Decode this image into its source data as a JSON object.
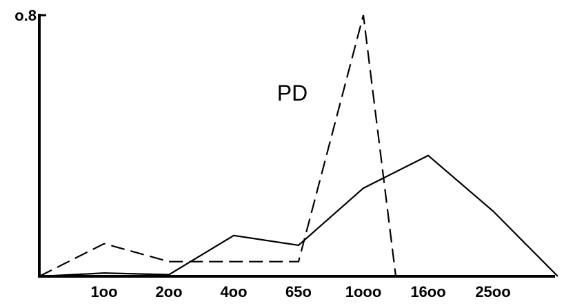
{
  "chart_data": {
    "type": "line",
    "title": "",
    "xlabel": "",
    "ylabel": "",
    "ylim": [
      0,
      0.8
    ],
    "y_ticks": [
      {
        "value": 0.8,
        "label": "o.8"
      }
    ],
    "categories": [
      "",
      "1oo",
      "2oo",
      "4oo",
      "65o",
      "1ooo",
      "16oo",
      "25oo",
      ""
    ],
    "annotations": [
      {
        "text": "PD"
      }
    ],
    "series": [
      {
        "style": "dashed",
        "x": [
          0,
          1,
          2,
          3,
          4,
          5,
          5.5
        ],
        "y": [
          0,
          0.1,
          0.045,
          0.045,
          0.045,
          0.8,
          0
        ]
      },
      {
        "style": "solid",
        "x": [
          0,
          1,
          2,
          3,
          4,
          5,
          6,
          7,
          8
        ],
        "y": [
          0,
          0.01,
          0.005,
          0.125,
          0.095,
          0.27,
          0.37,
          0.2,
          0
        ]
      }
    ],
    "grid": false,
    "legend": "none"
  }
}
